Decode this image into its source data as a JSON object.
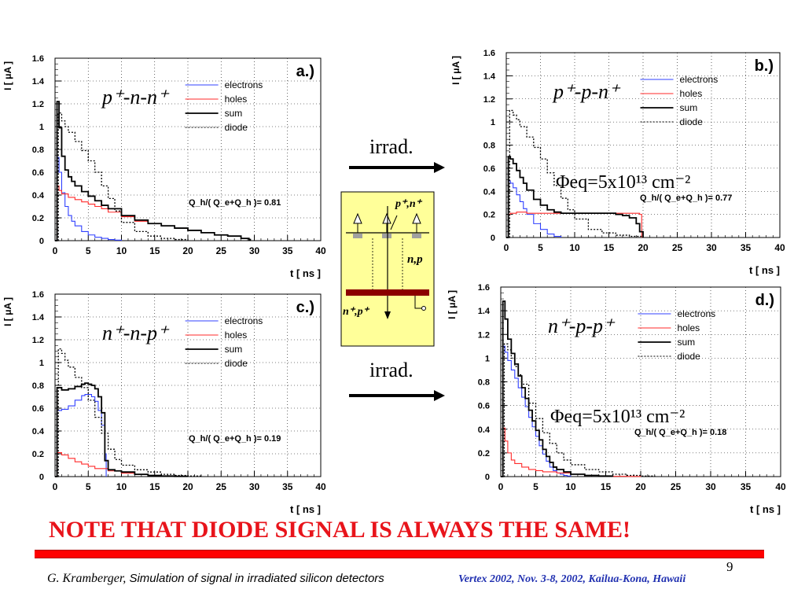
{
  "colors": {
    "electrons": "#3040ff",
    "holes": "#ff2a2a",
    "sum": "#000000",
    "diode": "#000000",
    "note": "#e8141b",
    "footer_right": "#1f2fb0",
    "schematic_bg": "#ffff99",
    "electrode": "#8b0000"
  },
  "chart_data": [
    {
      "type": "line",
      "panel_label": "a.)",
      "structure": "p⁺-n-n⁺",
      "ylabel": "I [ μA ]",
      "xlabel": "t [ ns ]",
      "xlim": [
        0,
        40
      ],
      "ylim": [
        0,
        1.6
      ],
      "xticks": [
        "0",
        "5",
        "10",
        "15",
        "20",
        "25",
        "30",
        "35",
        "40"
      ],
      "yticks": [
        "0",
        "0.2",
        "0.4",
        "0.6",
        "0.8",
        "1",
        "1.2",
        "1.4",
        "1.6"
      ],
      "grid": true,
      "legend_position": "top-right",
      "ratio_text": "Q_h/( Q_e+Q_h )= 0.81",
      "series": [
        {
          "name": "electrons",
          "style": "solid-blue",
          "x": [
            0,
            0.3,
            0.6,
            1,
            1.5,
            2,
            2.5,
            3,
            4,
            5,
            6,
            7,
            8,
            9,
            10
          ],
          "y": [
            0,
            0.73,
            0.6,
            0.42,
            0.3,
            0.22,
            0.17,
            0.13,
            0.08,
            0.05,
            0.03,
            0.02,
            0.01,
            0.005,
            0
          ]
        },
        {
          "name": "holes",
          "style": "solid-red",
          "x": [
            0,
            0.3,
            0.6,
            1,
            2,
            3,
            4,
            5,
            6,
            7,
            8,
            10,
            12,
            14,
            16,
            18,
            20,
            22,
            24,
            26,
            28,
            29.2,
            29.4
          ],
          "y": [
            0,
            0.48,
            0.44,
            0.41,
            0.38,
            0.36,
            0.34,
            0.32,
            0.3,
            0.28,
            0.25,
            0.21,
            0.17,
            0.15,
            0.13,
            0.11,
            0.09,
            0.07,
            0.05,
            0.04,
            0.02,
            0.01,
            0
          ]
        },
        {
          "name": "sum",
          "style": "solid-black",
          "x": [
            0,
            0.3,
            0.6,
            1,
            1.5,
            2,
            2.5,
            3,
            4,
            5,
            6,
            7,
            8,
            10,
            12,
            14,
            16,
            18,
            20,
            22,
            24,
            26,
            28,
            29.2,
            29.4
          ],
          "y": [
            0,
            1.22,
            0.99,
            0.74,
            0.62,
            0.56,
            0.52,
            0.48,
            0.43,
            0.39,
            0.35,
            0.31,
            0.28,
            0.22,
            0.18,
            0.15,
            0.13,
            0.11,
            0.09,
            0.07,
            0.05,
            0.04,
            0.02,
            0.01,
            0
          ]
        },
        {
          "name": "diode",
          "style": "dotted-black",
          "x": [
            0,
            0.5,
            1,
            1.5,
            2,
            3,
            4,
            5,
            6,
            7,
            8,
            9,
            10,
            12,
            14,
            16,
            18,
            20
          ],
          "y": [
            0,
            1.12,
            1.05,
            1.0,
            0.95,
            0.87,
            0.79,
            0.7,
            0.6,
            0.48,
            0.37,
            0.26,
            0.16,
            0.08,
            0.04,
            0.02,
            0.01,
            0
          ]
        }
      ]
    },
    {
      "type": "line",
      "panel_label": "b.)",
      "structure": "p⁺-p-n⁺",
      "fluence": "Φeq=5x10¹³ cm⁻²",
      "ylabel": "I [ μA ]",
      "xlabel": "t [ ns ]",
      "xlim": [
        0,
        40
      ],
      "ylim": [
        0,
        1.6
      ],
      "xticks": [
        "0",
        "5",
        "10",
        "15",
        "20",
        "25",
        "30",
        "35",
        "40"
      ],
      "yticks": [
        "0",
        "0.2",
        "0.4",
        "0.6",
        "0.8",
        "1",
        "1.2",
        "1.4",
        "1.6"
      ],
      "grid": true,
      "legend_position": "top-right",
      "ratio_text": "Q_h/( Q_e+Q_h )= 0.77",
      "series": [
        {
          "name": "electrons",
          "style": "solid-blue",
          "x": [
            0,
            0.3,
            0.6,
            1,
            1.5,
            2,
            2.5,
            3,
            4,
            5,
            6,
            7,
            8
          ],
          "y": [
            0,
            0.49,
            0.47,
            0.43,
            0.37,
            0.31,
            0.25,
            0.2,
            0.12,
            0.07,
            0.03,
            0.01,
            0
          ]
        },
        {
          "name": "holes",
          "style": "solid-red",
          "x": [
            0,
            0.3,
            0.6,
            1,
            1.5,
            2,
            3,
            4,
            6,
            8,
            10,
            12,
            14,
            16,
            18,
            19.5,
            19.8
          ],
          "y": [
            0,
            0.2,
            0.21,
            0.21,
            0.22,
            0.22,
            0.21,
            0.21,
            0.21,
            0.21,
            0.21,
            0.21,
            0.21,
            0.21,
            0.21,
            0.2,
            0
          ]
        },
        {
          "name": "sum",
          "style": "solid-black",
          "x": [
            0,
            0.3,
            0.6,
            1,
            1.5,
            2,
            2.5,
            3,
            4,
            5,
            6,
            7,
            8,
            10,
            12,
            14,
            15,
            16,
            17,
            18,
            19,
            19.5,
            20
          ],
          "y": [
            0,
            0.7,
            0.68,
            0.64,
            0.58,
            0.52,
            0.47,
            0.41,
            0.33,
            0.28,
            0.24,
            0.22,
            0.21,
            0.21,
            0.21,
            0.21,
            0.21,
            0.2,
            0.19,
            0.17,
            0.12,
            0.05,
            0
          ]
        },
        {
          "name": "diode",
          "style": "dotted-black",
          "x": [
            0,
            0.5,
            1,
            1.5,
            2,
            3,
            4,
            5,
            6,
            7,
            8,
            9,
            10,
            12,
            14,
            16,
            18,
            20
          ],
          "y": [
            0,
            1.1,
            1.06,
            1.02,
            0.96,
            0.87,
            0.78,
            0.68,
            0.56,
            0.45,
            0.34,
            0.24,
            0.16,
            0.07,
            0.04,
            0.02,
            0.01,
            0
          ]
        }
      ]
    },
    {
      "type": "line",
      "panel_label": "c.)",
      "structure": "n⁺-n-p⁺",
      "ylabel": "I [ μA ]",
      "xlabel": "t [ ns ]",
      "xlim": [
        0,
        40
      ],
      "ylim": [
        0,
        1.6
      ],
      "xticks": [
        "0",
        "5",
        "10",
        "15",
        "20",
        "25",
        "30",
        "35",
        "40"
      ],
      "yticks": [
        "0",
        "0.2",
        "0.4",
        "0.6",
        "0.8",
        "1",
        "1.2",
        "1.4",
        "1.6"
      ],
      "grid": true,
      "legend_position": "top-right",
      "ratio_text": "Q_h/( Q_e+Q_h )= 0.19",
      "series": [
        {
          "name": "electrons",
          "style": "solid-blue",
          "x": [
            0,
            0.3,
            1,
            2,
            3,
            4,
            4.5,
            5,
            5.5,
            6,
            6.5,
            7,
            7.5,
            7.7
          ],
          "y": [
            0,
            0.58,
            0.59,
            0.62,
            0.67,
            0.71,
            0.72,
            0.72,
            0.7,
            0.66,
            0.58,
            0.45,
            0.2,
            0
          ]
        },
        {
          "name": "holes",
          "style": "solid-red",
          "x": [
            0,
            0.3,
            1,
            2,
            3,
            4,
            5,
            6,
            8,
            10,
            12,
            14,
            16,
            18,
            20
          ],
          "y": [
            0,
            0.21,
            0.19,
            0.16,
            0.13,
            0.11,
            0.09,
            0.07,
            0.05,
            0.03,
            0.02,
            0.01,
            0.005,
            0.002,
            0
          ]
        },
        {
          "name": "sum",
          "style": "solid-black",
          "x": [
            0,
            0.3,
            1,
            2,
            3,
            4,
            4.5,
            5,
            5.5,
            6,
            6.5,
            7,
            7.5,
            8,
            9,
            10,
            12,
            14,
            16,
            18,
            20
          ],
          "y": [
            0,
            0.78,
            0.76,
            0.77,
            0.79,
            0.81,
            0.82,
            0.81,
            0.8,
            0.77,
            0.7,
            0.56,
            0.14,
            0.06,
            0.05,
            0.04,
            0.02,
            0.01,
            0.005,
            0.002,
            0
          ]
        },
        {
          "name": "diode",
          "style": "dotted-black",
          "x": [
            0,
            0.5,
            1,
            1.5,
            2,
            3,
            4,
            5,
            6,
            7,
            8,
            9,
            10,
            12,
            14,
            16,
            18,
            20,
            22
          ],
          "y": [
            0,
            1.12,
            1.08,
            1.02,
            0.96,
            0.87,
            0.78,
            0.67,
            0.52,
            0.38,
            0.24,
            0.15,
            0.1,
            0.06,
            0.04,
            0.02,
            0.01,
            0.005,
            0
          ]
        }
      ]
    },
    {
      "type": "line",
      "panel_label": "d.)",
      "structure": "n⁺-p-p⁺",
      "fluence": "Φeq=5x10¹³ cm⁻²",
      "ylabel": "I [ μA ]",
      "xlabel": "t [ ns ]",
      "xlim": [
        0,
        40
      ],
      "ylim": [
        0,
        1.6
      ],
      "xticks": [
        "0",
        "5",
        "10",
        "15",
        "20",
        "25",
        "30",
        "35",
        "40"
      ],
      "yticks": [
        "0",
        "0.2",
        "0.4",
        "0.6",
        "0.8",
        "1",
        "1.2",
        "1.4",
        "1.6"
      ],
      "grid": true,
      "legend_position": "top-right",
      "ratio_text": "Q_h/( Q_e+Q_h )= 0.18",
      "series": [
        {
          "name": "electrons",
          "style": "solid-blue",
          "x": [
            0,
            0.3,
            0.6,
            1,
            1.5,
            2,
            2.5,
            3,
            3.5,
            4,
            4.5,
            5,
            5.5,
            6,
            6.5,
            7,
            7.5,
            8,
            8.5,
            9,
            9.5,
            10
          ],
          "y": [
            0,
            1.1,
            1.05,
            0.98,
            0.9,
            0.83,
            0.75,
            0.67,
            0.59,
            0.5,
            0.42,
            0.34,
            0.26,
            0.19,
            0.13,
            0.08,
            0.05,
            0.03,
            0.02,
            0.01,
            0.005,
            0
          ]
        },
        {
          "name": "holes",
          "style": "solid-red",
          "x": [
            0,
            0.3,
            0.6,
            1,
            1.5,
            2,
            3,
            4,
            5,
            6,
            8,
            10,
            12,
            14,
            16,
            18,
            20
          ],
          "y": [
            0,
            0.41,
            0.3,
            0.2,
            0.14,
            0.11,
            0.08,
            0.06,
            0.05,
            0.04,
            0.03,
            0.02,
            0.01,
            0.005,
            0.002,
            0.001,
            0
          ]
        },
        {
          "name": "sum",
          "style": "solid-black",
          "x": [
            0,
            0.3,
            0.6,
            1,
            1.5,
            2,
            2.5,
            3,
            3.5,
            4,
            4.5,
            5,
            5.5,
            6,
            6.5,
            7,
            7.5,
            8,
            9,
            10,
            12,
            14,
            16
          ],
          "y": [
            0,
            1.48,
            1.33,
            1.16,
            1.04,
            0.95,
            0.85,
            0.75,
            0.66,
            0.56,
            0.47,
            0.39,
            0.31,
            0.23,
            0.17,
            0.12,
            0.08,
            0.06,
            0.04,
            0.02,
            0.01,
            0.005,
            0
          ]
        },
        {
          "name": "diode",
          "style": "dotted-black",
          "x": [
            0,
            0.5,
            1,
            1.5,
            2,
            2.5,
            3,
            4,
            5,
            6,
            7,
            8,
            9,
            10,
            12,
            14,
            16,
            18,
            20,
            22
          ],
          "y": [
            0,
            1.12,
            1.07,
            1.0,
            0.93,
            0.86,
            0.78,
            0.62,
            0.49,
            0.37,
            0.28,
            0.2,
            0.14,
            0.1,
            0.06,
            0.04,
            0.02,
            0.01,
            0.005,
            0
          ]
        }
      ]
    }
  ],
  "arrows": [
    {
      "label": "irrad."
    },
    {
      "label": "irrad."
    }
  ],
  "schematic": {
    "top_label": "p⁺,n⁺",
    "middle_label": "n,p",
    "bottom_label": "n⁺,p⁺"
  },
  "note": "NOTE THAT DIODE SIGNAL IS ALWAYS THE SAME!",
  "page_number": "9",
  "footer": {
    "author": "G. Kramberger,",
    "title": "Simulation of signal in irradiated silicon detectors",
    "conference": "Vertex 2002, Nov.  3-8, 2002, Kailua-Kona, Hawaii"
  }
}
